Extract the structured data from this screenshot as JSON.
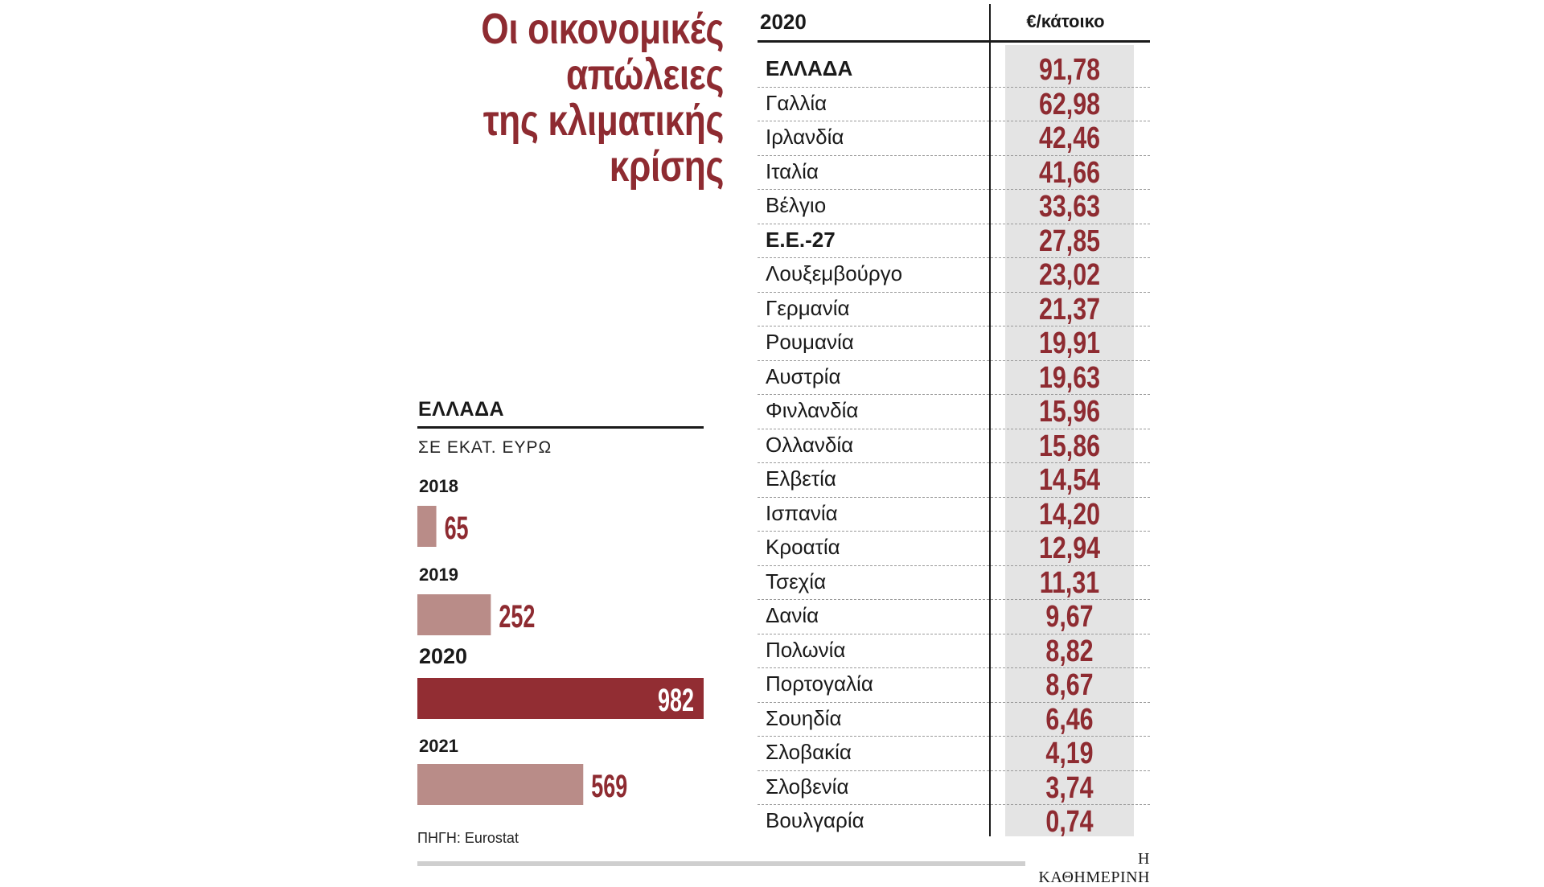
{
  "title_lines": [
    "Οι οικονομικές",
    "απώλειες",
    "της κλιματικής",
    "κρίσης"
  ],
  "greece_panel": {
    "title": "ΕΛΛΑΔΑ",
    "unit": "ΣΕ ΕΚΑΤ. ΕΥΡΩ"
  },
  "source": "ΠΗΓΗ: Eurostat",
  "brand": "Η ΚΑΘΗΜΕΡΙΝΗ",
  "table": {
    "year": "2020",
    "unit": "€/κάτοικο"
  },
  "colors": {
    "accent": "#8e2b31",
    "bar_light": "#b98c88",
    "bar_highlight": "#922d33",
    "shade": "#e4e4e4"
  },
  "chart_data": [
    {
      "type": "bar",
      "orientation": "horizontal",
      "title": "ΕΛΛΑΔΑ",
      "subtitle": "ΣΕ ΕΚΑΤ. ΕΥΡΩ",
      "categories": [
        "2018",
        "2019",
        "2020",
        "2021"
      ],
      "values": [
        65,
        252,
        982,
        569
      ],
      "value_labels": [
        "65",
        "252",
        "982",
        "569"
      ],
      "highlight": "2020",
      "xlim": [
        0,
        982
      ]
    },
    {
      "type": "table",
      "columns": [
        "2020",
        "€/κάτοικο"
      ],
      "rows": [
        {
          "country": "ΕΛΛΑΔΑ",
          "value": "91,78",
          "bold": true
        },
        {
          "country": "Γαλλία",
          "value": "62,98"
        },
        {
          "country": "Ιρλανδία",
          "value": "42,46"
        },
        {
          "country": "Ιταλία",
          "value": "41,66"
        },
        {
          "country": "Βέλγιο",
          "value": "33,63"
        },
        {
          "country": "Ε.Ε.-27",
          "value": "27,85",
          "bold": true
        },
        {
          "country": "Λουξεμβούργο",
          "value": "23,02"
        },
        {
          "country": "Γερμανία",
          "value": "21,37"
        },
        {
          "country": "Ρουμανία",
          "value": "19,91"
        },
        {
          "country": "Αυστρία",
          "value": "19,63"
        },
        {
          "country": "Φινλανδία",
          "value": "15,96"
        },
        {
          "country": "Ολλανδία",
          "value": "15,86"
        },
        {
          "country": "Ελβετία",
          "value": "14,54"
        },
        {
          "country": "Ισπανία",
          "value": "14,20"
        },
        {
          "country": "Κροατία",
          "value": "12,94"
        },
        {
          "country": "Τσεχία",
          "value": "11,31"
        },
        {
          "country": "Δανία",
          "value": "9,67"
        },
        {
          "country": "Πολωνία",
          "value": "8,82"
        },
        {
          "country": "Πορτογαλία",
          "value": "8,67"
        },
        {
          "country": "Σουηδία",
          "value": "6,46"
        },
        {
          "country": "Σλοβακία",
          "value": "4,19"
        },
        {
          "country": "Σλοβενία",
          "value": "3,74"
        },
        {
          "country": "Βουλγαρία",
          "value": "0,74"
        }
      ]
    }
  ]
}
